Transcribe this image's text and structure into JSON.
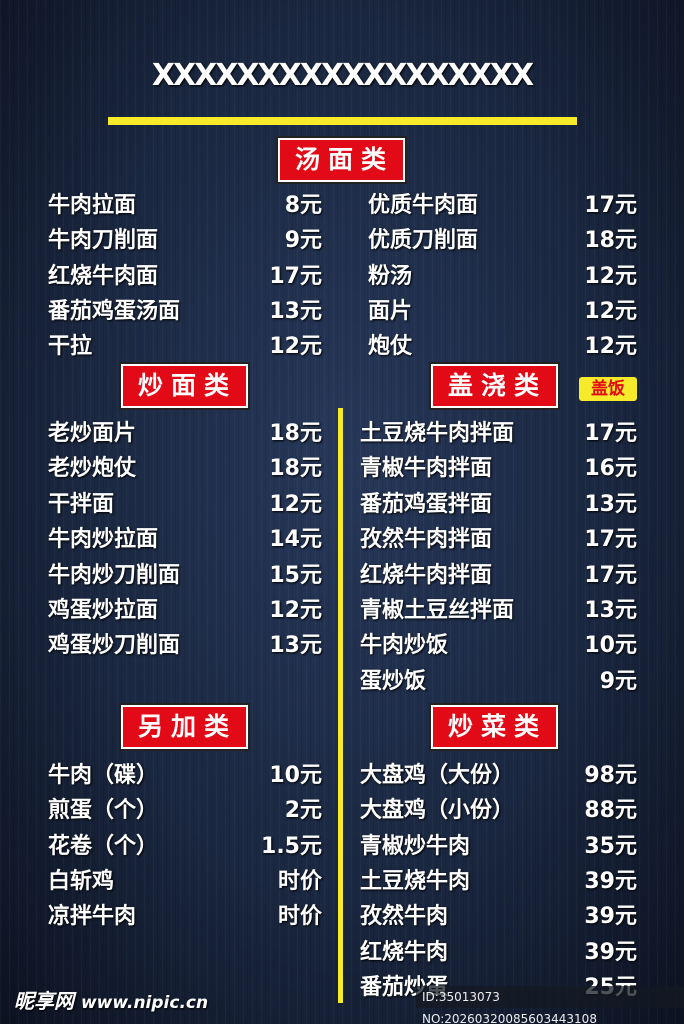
{
  "title": "XXXXXXXXXXXXXXXXXX",
  "sections": {
    "soup": {
      "label": "汤面类",
      "items": [
        [
          "牛肉拉面",
          "8元"
        ],
        [
          "牛肉刀削面",
          "9元"
        ],
        [
          "红烧牛肉面",
          "17元"
        ],
        [
          "番茄鸡蛋汤面",
          "13元"
        ],
        [
          "干拉",
          "12元"
        ]
      ],
      "items2": [
        [
          "优质牛肉面",
          "17元"
        ],
        [
          "优质刀削面",
          "18元"
        ],
        [
          "粉汤",
          "12元"
        ],
        [
          "面片",
          "12元"
        ],
        [
          "炮仗",
          "12元"
        ]
      ]
    },
    "fried": {
      "label": "炒面类",
      "items": [
        [
          "老炒面片",
          "18元"
        ],
        [
          "老炒炮仗",
          "18元"
        ],
        [
          "干拌面",
          "12元"
        ],
        [
          "牛肉炒拉面",
          "14元"
        ],
        [
          "牛肉炒刀削面",
          "15元"
        ],
        [
          "鸡蛋炒拉面",
          "12元"
        ],
        [
          "鸡蛋炒刀削面",
          "13元"
        ]
      ]
    },
    "topping": {
      "label": "盖浇类",
      "badge": "盖饭",
      "items": [
        [
          "土豆烧牛肉拌面",
          "17元"
        ],
        [
          "青椒牛肉拌面",
          "16元"
        ],
        [
          "番茄鸡蛋拌面",
          "13元"
        ],
        [
          "孜然牛肉拌面",
          "17元"
        ],
        [
          "红烧牛肉拌面",
          "17元"
        ],
        [
          "青椒土豆丝拌面",
          "13元"
        ],
        [
          "牛肉炒饭",
          "10元"
        ],
        [
          "蛋炒饭",
          "9元"
        ]
      ]
    },
    "extra": {
      "label": "另加类",
      "items": [
        [
          "牛肉（碟）",
          "10元"
        ],
        [
          "煎蛋（个）",
          "2元"
        ],
        [
          "花卷（个）",
          "1.5元"
        ],
        [
          "白斩鸡",
          "时价"
        ],
        [
          "凉拌牛肉",
          "时价"
        ]
      ]
    },
    "dishes": {
      "label": "炒菜类",
      "items": [
        [
          "大盘鸡（大份）",
          "98元"
        ],
        [
          "大盘鸡（小份）",
          "88元"
        ],
        [
          "青椒炒牛肉",
          "35元"
        ],
        [
          "土豆烧牛肉",
          "39元"
        ],
        [
          "孜然牛肉",
          "39元"
        ],
        [
          "红烧牛肉",
          "39元"
        ],
        [
          "番茄炒蛋",
          "25元"
        ]
      ]
    }
  },
  "watermark": {
    "logo": "昵享网",
    "url": "www.nipic.cn",
    "id": "ID:35013073 NO:20260320085603443108"
  },
  "colors": {
    "accent": "#f7ea2a",
    "section_bg": "#e20a17"
  }
}
